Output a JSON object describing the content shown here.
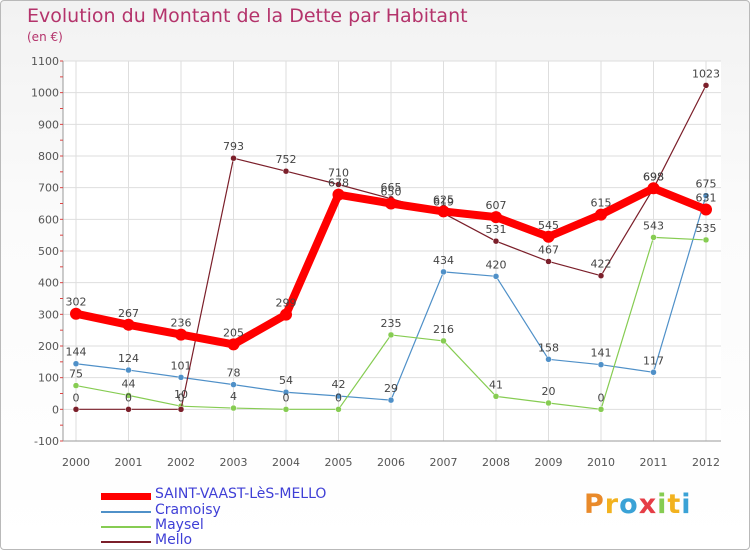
{
  "chart_data": {
    "type": "line",
    "title": "Evolution du Montant de la Dette par Habitant",
    "unit_label": "(en €)",
    "categories": [
      "2000",
      "2001",
      "2002",
      "2003",
      "2004",
      "2005",
      "2006",
      "2007",
      "2008",
      "2009",
      "2010",
      "2011",
      "2012"
    ],
    "ylim": [
      -100,
      1100
    ],
    "yticks": [
      "-100",
      "0",
      "100",
      "200",
      "300",
      "400",
      "500",
      "600",
      "700",
      "800",
      "900",
      "1000",
      "1100"
    ],
    "grid": true,
    "legend_position": "bottom-left",
    "series": [
      {
        "name": "SAINT-VAAST-LèS-MELLO",
        "color": "#ff0000",
        "values": [
          302,
          267,
          236,
          205,
          299,
          678,
          650,
          625,
          607,
          545,
          615,
          698,
          631
        ]
      },
      {
        "name": "Cramoisy",
        "color": "#4f90c8",
        "values": [
          144,
          124,
          101,
          78,
          54,
          42,
          29,
          434,
          420,
          158,
          141,
          117,
          675
        ]
      },
      {
        "name": "Maysel",
        "color": "#86cc52",
        "values": [
          75,
          44,
          10,
          4,
          0,
          0,
          235,
          216,
          41,
          20,
          0,
          543,
          535
        ]
      },
      {
        "name": "Mello",
        "color": "#7b1f2a",
        "values": [
          0,
          0,
          0,
          793,
          752,
          710,
          665,
          619,
          531,
          467,
          422,
          698,
          1023
        ]
      }
    ],
    "data_labels": [
      [
        "302",
        "267",
        "236",
        "205",
        "299",
        "678",
        "650",
        "625",
        "607",
        "545",
        "615",
        "698",
        "631"
      ],
      [
        "144",
        "124",
        "101",
        "78",
        "54",
        "42",
        "29",
        "434",
        "420",
        "158",
        "141",
        "117",
        "675"
      ],
      [
        "75",
        "44",
        "10",
        "4",
        "0",
        "0",
        "235",
        "216",
        "41",
        "20",
        "0",
        "543",
        "535"
      ],
      [
        "0",
        "0",
        "0",
        "793",
        "752",
        "710",
        "665",
        "619",
        "531",
        "467",
        "422",
        "698",
        "1023"
      ]
    ]
  },
  "logo": {
    "text": "Proxiti",
    "letters": [
      "P",
      "r",
      "o",
      "x",
      "i",
      "t",
      "i"
    ],
    "colors": [
      "#e98a2a",
      "#f2b21f",
      "#3aa2d6",
      "#e53d46",
      "#86cc52",
      "#f2b21f",
      "#3aa2d6"
    ]
  }
}
